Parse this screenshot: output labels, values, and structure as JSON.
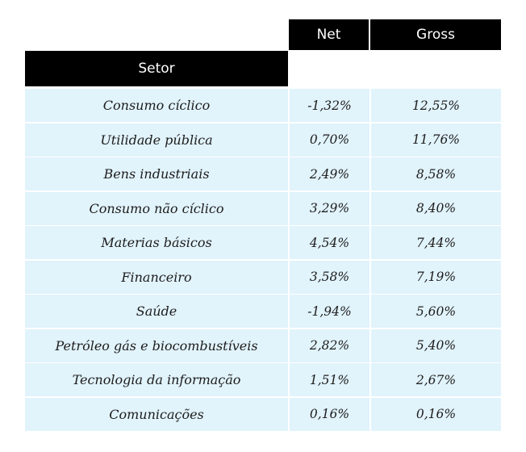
{
  "headers": {
    "net": "Net",
    "gross": "Gross",
    "setor": "Setor"
  },
  "rows": [
    {
      "setor": "Consumo cíclico",
      "net": "-1,32%",
      "gross": "12,55%"
    },
    {
      "setor": "Utilidade pública",
      "net": "0,70%",
      "gross": "11,76%"
    },
    {
      "setor": "Bens industriais",
      "net": "2,49%",
      "gross": "8,58%"
    },
    {
      "setor": "Consumo não cíclico",
      "net": "3,29%",
      "gross": "8,40%"
    },
    {
      "setor": "Materias básicos",
      "net": "4,54%",
      "gross": "7,44%"
    },
    {
      "setor": "Financeiro",
      "net": "3,58%",
      "gross": "7,19%"
    },
    {
      "setor": "Saúde",
      "net": "-1,94%",
      "gross": "5,60%"
    },
    {
      "setor": "Petróleo gás e biocombustíveis",
      "net": "2,82%",
      "gross": "5,40%"
    },
    {
      "setor": "Tecnologia da informação",
      "net": "1,51%",
      "gross": "2,67%"
    },
    {
      "setor": "Comunicações",
      "net": "0,16%",
      "gross": "0,16%"
    }
  ]
}
